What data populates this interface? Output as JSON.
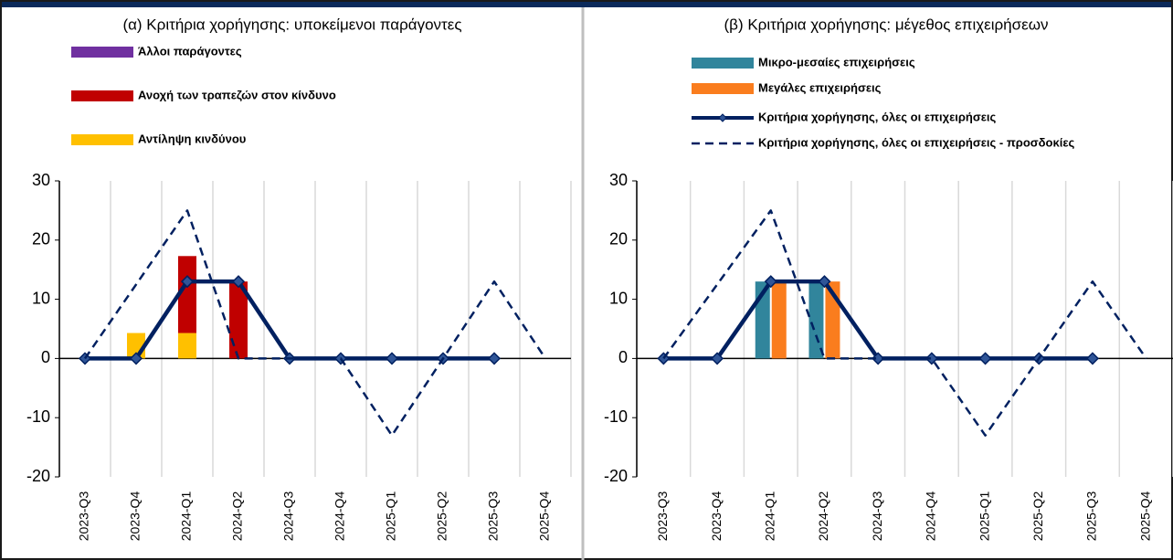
{
  "chart_data": [
    {
      "type": "bar",
      "barmode": "stacked",
      "title": "(α) Κριτήρια χορήγησης: υποκείμενοι παράγοντες",
      "categories": [
        "2023-Q3",
        "2023-Q4",
        "2024-Q1",
        "2024-Q2",
        "2024-Q3",
        "2024-Q4",
        "2025-Q1",
        "2025-Q2",
        "2025-Q3",
        "2025-Q4"
      ],
      "ylim": [
        -20,
        30
      ],
      "yticks": [
        -20,
        -10,
        0,
        10,
        20,
        30
      ],
      "series": [
        {
          "name": "Άλλοι παράγοντες",
          "color": "#7030a0",
          "values": [
            0,
            0,
            0,
            0,
            0,
            0,
            0,
            0,
            0,
            0
          ]
        },
        {
          "name": "Ανοχή των τραπεζών στον κίνδυνο",
          "color": "#c00000",
          "values": [
            0,
            0,
            13,
            13,
            0,
            0,
            0,
            0,
            0,
            0
          ]
        },
        {
          "name": "Αντίληψη κινδύνου",
          "color": "#ffc000",
          "values": [
            0,
            4.3,
            4.3,
            0,
            0,
            0,
            0,
            0,
            0,
            0
          ]
        }
      ],
      "lines": [
        {
          "color": "#002060",
          "style": "solid",
          "marker": "diamond",
          "values": [
            0,
            0,
            13,
            13,
            0,
            0,
            0,
            0,
            0,
            null
          ]
        },
        {
          "color": "#002060",
          "style": "dashed",
          "values": [
            0,
            12.5,
            25,
            0,
            0,
            0,
            -13,
            0,
            13,
            0
          ]
        }
      ]
    },
    {
      "type": "bar",
      "barmode": "grouped",
      "title": "(β) Κριτήρια χορήγησης: μέγεθος επιχειρήσεων",
      "categories": [
        "2023-Q3",
        "2023-Q4",
        "2024-Q1",
        "2024-Q2",
        "2024-Q3",
        "2024-Q4",
        "2025-Q1",
        "2025-Q2",
        "2025-Q3",
        "2025-Q4"
      ],
      "ylim": [
        -20,
        30
      ],
      "yticks": [
        -20,
        -10,
        0,
        10,
        20,
        30
      ],
      "series": [
        {
          "name": "Μικρο-μεσαίες επιχειρήσεις",
          "color": "#31859c",
          "values": [
            0,
            0,
            13,
            13,
            0,
            0,
            0,
            0,
            0,
            0
          ]
        },
        {
          "name": "Μεγάλες επιχειρήσεις",
          "color": "#fa7d1e",
          "values": [
            0,
            0,
            13,
            13,
            0,
            0,
            0,
            0,
            0,
            0
          ]
        }
      ],
      "lines": [
        {
          "name": "Κριτήρια χορήγησης, όλες οι επιχειρήσεις",
          "color": "#002060",
          "style": "solid",
          "marker": "diamond",
          "values": [
            0,
            0,
            13,
            13,
            0,
            0,
            0,
            0,
            0,
            null
          ]
        },
        {
          "name": "Κριτήρια χορήγησης, όλες οι επιχειρήσεις - προσδοκίες",
          "color": "#002060",
          "style": "dashed",
          "values": [
            0,
            12.5,
            25,
            0,
            0,
            0,
            -13,
            0,
            13,
            0
          ]
        }
      ]
    }
  ]
}
